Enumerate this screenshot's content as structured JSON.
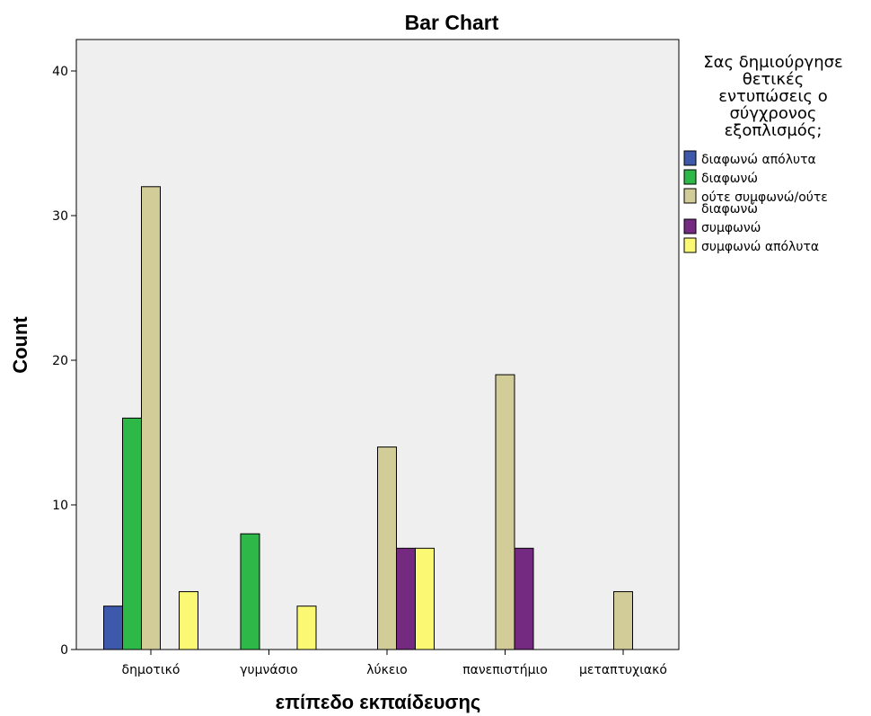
{
  "chart_data": {
    "type": "bar",
    "title": "Bar Chart",
    "xlabel": "επίπεδο εκπαίδευσης",
    "ylabel": "Count",
    "ylim": [
      0,
      42
    ],
    "yticks": [
      0,
      10,
      20,
      30,
      40
    ],
    "categories": [
      "δημοτικό",
      "γυμνάσιο",
      "λύκειο",
      "πανεπιστήμιο",
      "μεταπτυχιακό"
    ],
    "legend_title_lines": [
      "Σας δημιούργησε",
      "θετικές",
      "εντυπώσεις ο",
      "σύγχρονος",
      "εξοπλισμός;"
    ],
    "legend_position": "right",
    "grid": false,
    "plot_background": "#efefef",
    "series": [
      {
        "name": "διαφωνώ απόλυτα",
        "color": "#3e58ac",
        "values": [
          3,
          0,
          0,
          0,
          0
        ]
      },
      {
        "name": "διαφωνώ",
        "color": "#2eb848",
        "values": [
          16,
          8,
          0,
          0,
          0
        ]
      },
      {
        "name": "ούτε συμφωνώ/ούτε διαφωνώ",
        "name_lines": [
          "ούτε συμφωνώ/ούτε",
          "διαφωνώ"
        ],
        "color": "#d2cc98",
        "values": [
          32,
          0,
          14,
          19,
          4
        ]
      },
      {
        "name": "συμφωνώ",
        "color": "#742a80",
        "values": [
          0,
          0,
          7,
          7,
          0
        ]
      },
      {
        "name": "συμφωνώ απόλυτα",
        "color": "#fbf873",
        "values": [
          4,
          3,
          7,
          0,
          0
        ]
      }
    ]
  }
}
